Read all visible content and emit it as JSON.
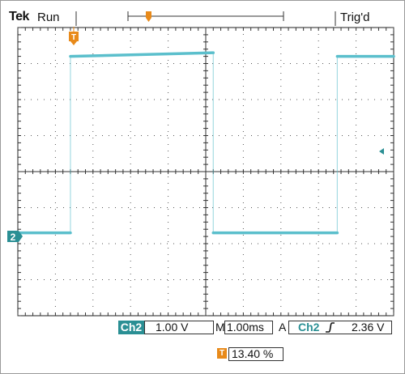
{
  "header": {
    "brand": "Tek",
    "acquisition_state": "Run",
    "trigger_status": "Trig'd"
  },
  "markers": {
    "trigger_position": "T",
    "channel": "2"
  },
  "readouts": {
    "channel_label": "Ch2",
    "channel_scale": "1.00 V",
    "timebase_prefix": "M",
    "timebase": "1.00ms",
    "trigger_mode": "A",
    "trigger_source": "Ch2",
    "trigger_slope_icon": "rising-edge-icon",
    "trigger_level": "2.36 V",
    "trigger_position_label": "T",
    "trigger_position_value": "13.40 %"
  },
  "chart_data": {
    "type": "line",
    "title": "",
    "xlabel": "",
    "ylabel": "",
    "grid": true,
    "divisions": {
      "x": 10,
      "y": 8
    },
    "xlim": [
      0,
      10
    ],
    "ylim": [
      -4,
      4
    ],
    "series": [
      {
        "values": [
          [
            0.0,
            -1.7
          ],
          [
            1.4,
            -1.7
          ],
          [
            1.4,
            3.2
          ],
          [
            5.2,
            3.3
          ],
          [
            5.2,
            -1.7
          ],
          [
            8.5,
            -1.7
          ],
          [
            8.5,
            3.2
          ],
          [
            10.0,
            3.2
          ]
        ]
      }
    ],
    "trace_color": "#5bbfcc"
  }
}
